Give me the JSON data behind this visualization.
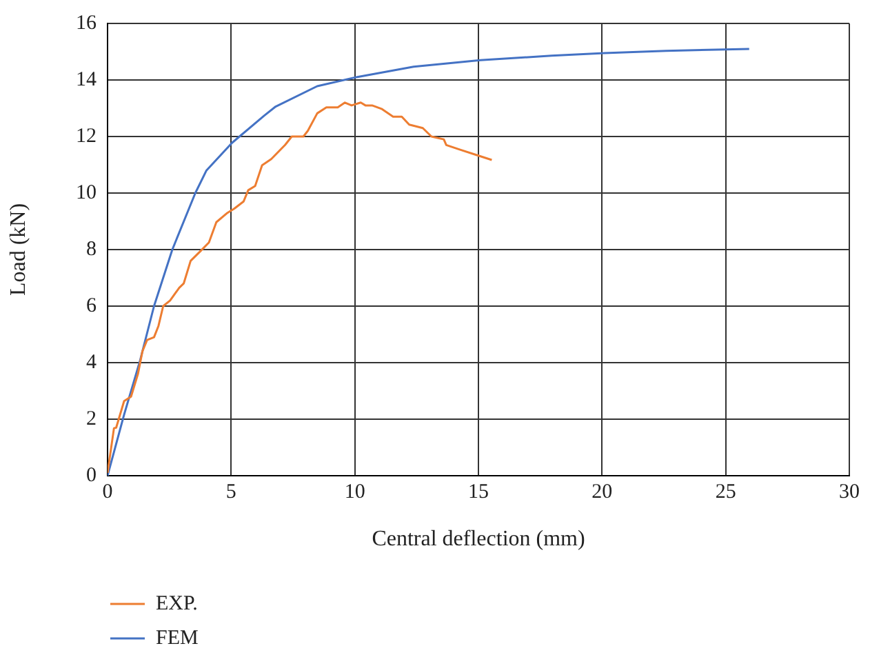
{
  "chart_data": {
    "type": "line",
    "xlabel": "Central deflection (mm)",
    "ylabel": "Load (kN)",
    "xlim": [
      0,
      30
    ],
    "xticks": [
      0,
      5,
      10,
      15,
      20,
      25,
      30
    ],
    "ylim": [
      0,
      16
    ],
    "yticks": [
      0,
      2,
      4,
      6,
      8,
      10,
      12,
      14,
      16
    ],
    "grid": true,
    "legend": "bottom left",
    "marker": "none",
    "series": [
      {
        "name": "EXP.",
        "color": "#ed7d31",
        "x": [
          0,
          0.26,
          0.35,
          0.67,
          0.95,
          1.23,
          1.41,
          1.6,
          1.88,
          2.06,
          2.25,
          2.53,
          2.9,
          3.08,
          3.36,
          3.74,
          4.1,
          4.4,
          4.85,
          5.13,
          5.5,
          5.69,
          5.97,
          6.25,
          6.62,
          7.18,
          7.45,
          7.92,
          8.1,
          8.48,
          8.85,
          9.31,
          9.6,
          9.87,
          10.24,
          10.43,
          10.7,
          11.08,
          11.55,
          11.9,
          12.2,
          12.75,
          13.1,
          13.6,
          13.7,
          14.24,
          14.98,
          15.54
        ],
        "values": [
          0.1,
          1.68,
          1.7,
          2.64,
          2.8,
          3.6,
          4.4,
          4.8,
          4.9,
          5.3,
          6.0,
          6.2,
          6.65,
          6.8,
          7.6,
          7.93,
          8.25,
          8.97,
          9.3,
          9.45,
          9.7,
          10.1,
          10.25,
          10.98,
          11.2,
          11.7,
          12.0,
          12.0,
          12.2,
          12.82,
          13.03,
          13.03,
          13.2,
          13.1,
          13.2,
          13.1,
          13.1,
          12.98,
          12.7,
          12.7,
          12.42,
          12.3,
          12.0,
          11.9,
          11.7,
          11.54,
          11.33,
          11.17
        ]
      },
      {
        "name": "FEM",
        "color": "#4472c4",
        "x": [
          0,
          0.67,
          1.32,
          1.88,
          2.62,
          3.55,
          4.0,
          5.04,
          6.34,
          6.8,
          8.48,
          10.06,
          12.38,
          15.08,
          17.96,
          20.1,
          22.6,
          25.95
        ],
        "values": [
          0,
          2.16,
          4.09,
          6.0,
          8.0,
          10.0,
          10.8,
          11.78,
          12.74,
          13.06,
          13.78,
          14.1,
          14.47,
          14.7,
          14.86,
          14.95,
          15.03,
          15.1
        ]
      }
    ]
  }
}
